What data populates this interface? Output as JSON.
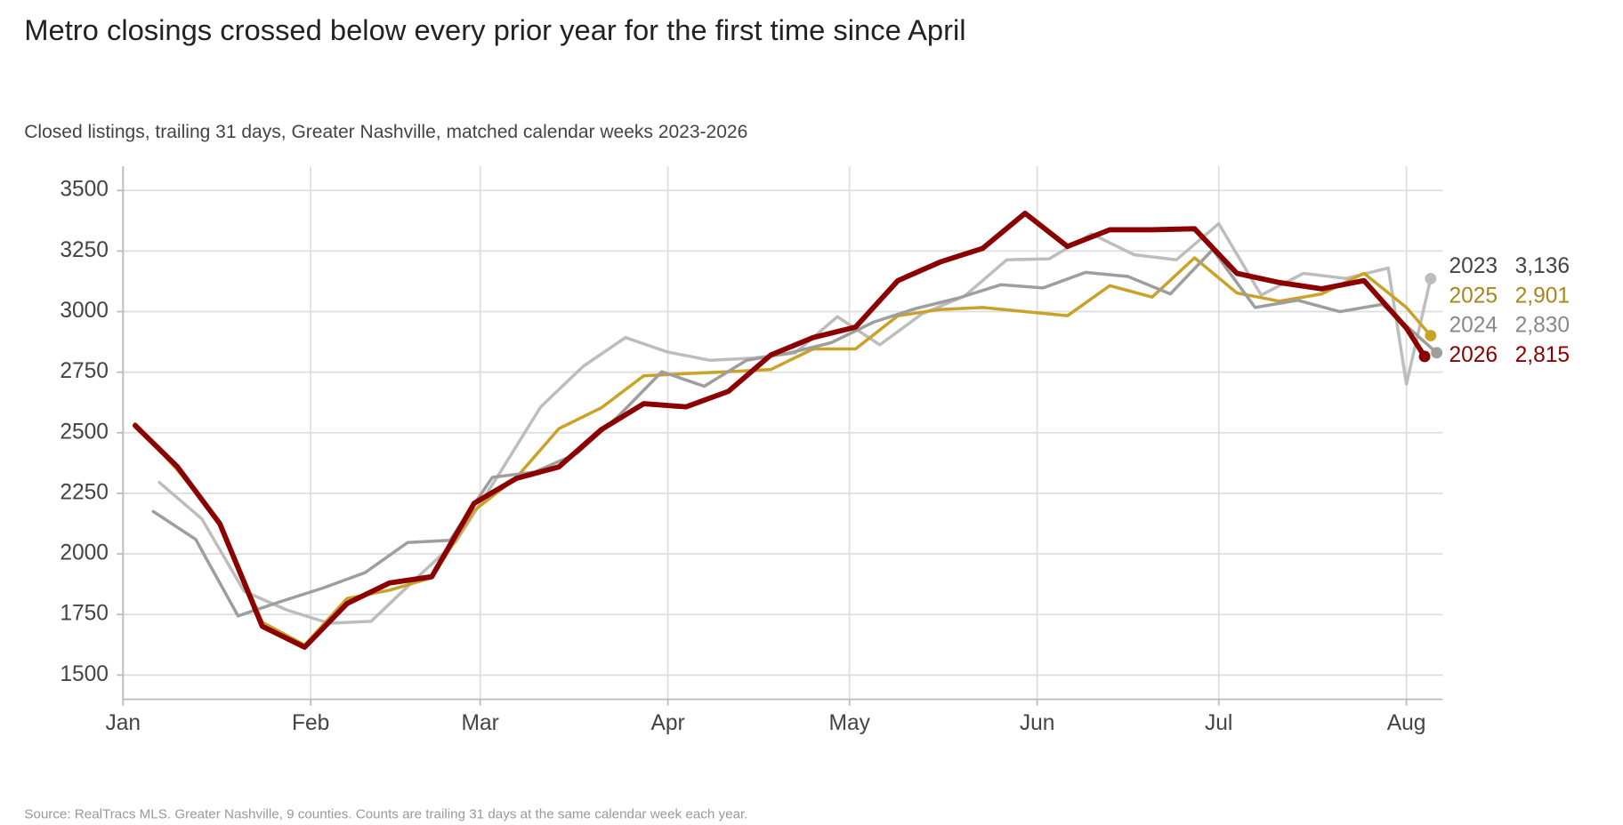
{
  "chart_data": {
    "type": "line",
    "title": "Metro closings crossed below every prior year for the first time since April",
    "subtitle": "Closed listings, trailing 31 days, Greater Nashville, matched calendar weeks 2023-2026",
    "source": "Source: RealTracs MLS. Greater Nashville, 9 counties. Counts are trailing 31 days at the same calendar week each year.",
    "xlim": [
      0,
      218
    ],
    "xticks": [
      {
        "value": 0,
        "label": "Jan"
      },
      {
        "value": 31,
        "label": "Feb"
      },
      {
        "value": 59,
        "label": "Mar"
      },
      {
        "value": 90,
        "label": "Apr"
      },
      {
        "value": 120,
        "label": "May"
      },
      {
        "value": 151,
        "label": "Jun"
      },
      {
        "value": 181,
        "label": "Jul"
      },
      {
        "value": 212,
        "label": "Aug"
      }
    ],
    "ylim": [
      1400,
      3600
    ],
    "yticks": [
      1500,
      1750,
      2000,
      2250,
      2500,
      2750,
      3000,
      3250,
      3500
    ],
    "grid": true,
    "series": [
      {
        "name": "2023",
        "color": "#bdbdbd",
        "label_color": "#444444",
        "width": 3,
        "x": [
          6,
          13,
          20,
          27,
          34,
          41,
          48,
          55,
          62,
          69,
          76,
          83,
          90,
          97,
          104,
          111,
          118,
          125,
          132,
          139,
          146,
          153,
          160,
          167,
          174,
          181,
          188,
          195,
          202,
          209,
          212,
          216
        ],
        "values": [
          2295,
          2145,
          1846,
          1769,
          1714,
          1722,
          1889,
          2051,
          2325,
          2607,
          2774,
          2893,
          2833,
          2799,
          2808,
          2829,
          2979,
          2863,
          2991,
          3064,
          3214,
          3218,
          3321,
          3235,
          3214,
          3363,
          3068,
          3158,
          3137,
          3180,
          2701,
          3136
        ],
        "value_labels": [
          null,
          null,
          null,
          null,
          null,
          null,
          null,
          null,
          null,
          null,
          null,
          null,
          null,
          null,
          null,
          null,
          null,
          null,
          null,
          null,
          null,
          null,
          null,
          null,
          null,
          null,
          null,
          null,
          null,
          null,
          null,
          "3,136"
        ]
      },
      {
        "name": "2025",
        "color": "#c9a227",
        "label_color": "#a8861a",
        "width": 3,
        "x": [
          2,
          9,
          16,
          23,
          30,
          37,
          44,
          51,
          58,
          65,
          72,
          79,
          86,
          93,
          100,
          107,
          114,
          121,
          128,
          135,
          142,
          149,
          156,
          163,
          170,
          177,
          184,
          191,
          198,
          205,
          212,
          216
        ],
        "values": [
          2538,
          2346,
          2132,
          1718,
          1624,
          1816,
          1850,
          1902,
          2179,
          2316,
          2517,
          2603,
          2735,
          2744,
          2752,
          2761,
          2846,
          2846,
          2983,
          3009,
          3017,
          3000,
          2983,
          3107,
          3060,
          3222,
          3077,
          3043,
          3073,
          3158,
          3017,
          2901
        ],
        "value_labels": [
          null,
          null,
          null,
          null,
          null,
          null,
          null,
          null,
          null,
          null,
          null,
          null,
          null,
          null,
          null,
          null,
          null,
          null,
          null,
          null,
          null,
          null,
          null,
          null,
          null,
          null,
          null,
          null,
          null,
          null,
          null,
          "2,901"
        ]
      },
      {
        "name": "2024",
        "color": "#9e9e9e",
        "label_color": "#888888",
        "width": 3,
        "x": [
          5,
          12,
          19,
          26,
          33,
          40,
          47,
          54,
          61,
          68,
          75,
          82,
          89,
          96,
          103,
          110,
          117,
          124,
          131,
          138,
          145,
          152,
          159,
          166,
          173,
          180,
          187,
          194,
          201,
          208,
          217
        ],
        "values": [
          2175,
          2060,
          1744,
          1803,
          1859,
          1923,
          2047,
          2056,
          2316,
          2338,
          2415,
          2573,
          2752,
          2692,
          2799,
          2829,
          2872,
          2957,
          3013,
          3056,
          3111,
          3098,
          3162,
          3145,
          3073,
          3256,
          3017,
          3047,
          3000,
          3030,
          2830
        ],
        "value_labels": [
          null,
          null,
          null,
          null,
          null,
          null,
          null,
          null,
          null,
          null,
          null,
          null,
          null,
          null,
          null,
          null,
          null,
          null,
          null,
          null,
          null,
          null,
          null,
          null,
          null,
          null,
          null,
          null,
          null,
          null,
          "2,830"
        ]
      },
      {
        "name": "2026",
        "color": "#8b0000",
        "label_color": "#8b0000",
        "width": 5,
        "x": [
          2,
          9,
          16,
          23,
          30,
          37,
          44,
          51,
          58,
          65,
          72,
          79,
          86,
          93,
          100,
          107,
          114,
          121,
          128,
          135,
          142,
          149,
          156,
          163,
          170,
          177,
          184,
          191,
          198,
          205,
          212,
          215
        ],
        "values": [
          2530,
          2359,
          2124,
          1701,
          1615,
          1795,
          1880,
          1906,
          2209,
          2312,
          2359,
          2513,
          2620,
          2607,
          2671,
          2821,
          2893,
          2936,
          3128,
          3205,
          3261,
          3406,
          3269,
          3338,
          3338,
          3342,
          3158,
          3120,
          3094,
          3128,
          2932,
          2815
        ],
        "value_labels": [
          null,
          null,
          null,
          null,
          null,
          null,
          null,
          null,
          null,
          null,
          null,
          null,
          null,
          null,
          null,
          null,
          null,
          null,
          null,
          null,
          null,
          null,
          null,
          null,
          null,
          null,
          null,
          null,
          null,
          null,
          null,
          "2,815"
        ]
      }
    ]
  }
}
